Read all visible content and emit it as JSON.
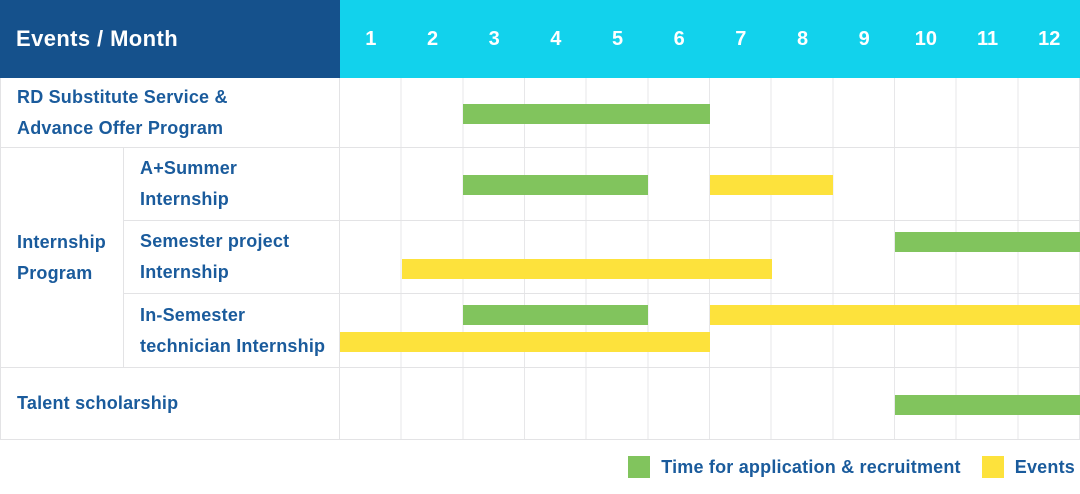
{
  "header": {
    "title": "Events / Month",
    "months": [
      "1",
      "2",
      "3",
      "4",
      "5",
      "6",
      "7",
      "8",
      "9",
      "10",
      "11",
      "12"
    ]
  },
  "colors": {
    "header_bg": "#15518C",
    "months_bg": "#12D2EC",
    "application": "#81C45D",
    "event": "#FDE23C",
    "label_text": "#1A5B9C"
  },
  "group": {
    "label": "Internship\nProgram"
  },
  "chart_data": {
    "type": "table",
    "title": "Events / Month",
    "x_unit": "month",
    "x_range": [
      1,
      12
    ],
    "rows": [
      {
        "label": "RD Substitute Service &\nAdvance Offer Program",
        "group": null,
        "bars": [
          {
            "type": "application",
            "start": 3,
            "end": 7,
            "lane": "single"
          }
        ]
      },
      {
        "label": "A+Summer\nInternship",
        "group": "Internship Program",
        "bars": [
          {
            "type": "application",
            "start": 3,
            "end": 6,
            "lane": "single"
          },
          {
            "type": "event",
            "start": 7,
            "end": 9,
            "lane": "single"
          }
        ]
      },
      {
        "label": "Semester project\nInternship",
        "group": "Internship Program",
        "bars": [
          {
            "type": "application",
            "start": 10,
            "end": 13,
            "lane": "upper"
          },
          {
            "type": "event",
            "start": 2,
            "end": 8,
            "lane": "lower"
          }
        ]
      },
      {
        "label": "In-Semester\ntechnician Internship",
        "group": "Internship Program",
        "bars": [
          {
            "type": "application",
            "start": 3,
            "end": 6,
            "lane": "upper"
          },
          {
            "type": "event",
            "start": 7,
            "end": 13,
            "lane": "upper"
          },
          {
            "type": "event",
            "start": 1,
            "end": 7,
            "lane": "lower"
          }
        ]
      },
      {
        "label": "Talent scholarship",
        "group": null,
        "bars": [
          {
            "type": "application",
            "start": 10,
            "end": 13,
            "lane": "single"
          }
        ]
      }
    ],
    "legend": [
      {
        "type": "application",
        "label": "Time for application & recruitment"
      },
      {
        "type": "event",
        "label": "Events"
      }
    ]
  }
}
